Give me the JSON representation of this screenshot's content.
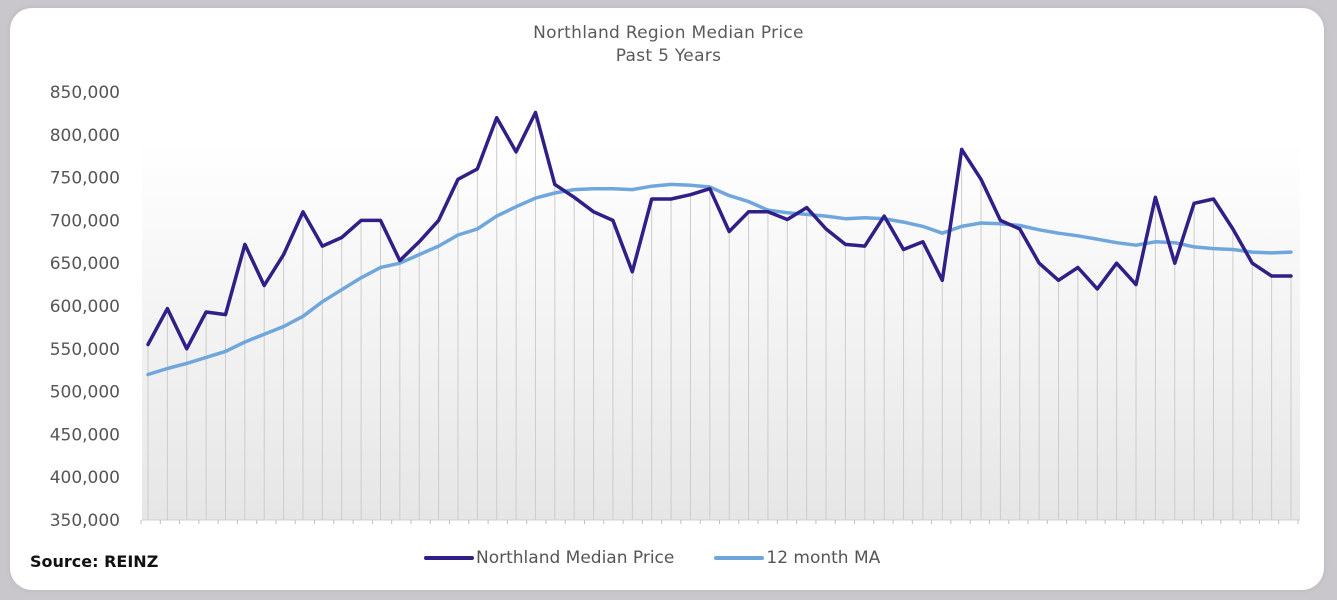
{
  "chart_data": {
    "type": "line",
    "title": "Northland Region Median Price",
    "subtitle": "Past 5 Years",
    "source": "Source: REINZ",
    "ylim": [
      350000,
      850000
    ],
    "yticks": [
      "350,000",
      "400,000",
      "450,000",
      "500,000",
      "550,000",
      "600,000",
      "650,000",
      "700,000",
      "750,000",
      "800,000",
      "850,000"
    ],
    "grid": "vertical bars with shaded background gradient",
    "legend_placement": "bottom-center",
    "series": [
      {
        "name": "Northland Median Price",
        "color": "#2f1f86",
        "values": [
          555000,
          597000,
          550000,
          593000,
          590000,
          672000,
          624000,
          660000,
          710000,
          670000,
          680000,
          700000,
          700000,
          653000,
          675000,
          700000,
          748000,
          760000,
          820000,
          780000,
          826000,
          742000,
          727000,
          710000,
          700000,
          640000,
          725000,
          725000,
          730000,
          737000,
          687000,
          710000,
          710000,
          701000,
          715000,
          690000,
          672000,
          670000,
          705000,
          666000,
          675000,
          630000,
          783000,
          748000,
          700000,
          690000,
          650000,
          630000,
          645000,
          620000,
          650000,
          625000,
          727000,
          650000,
          720000,
          725000,
          690000,
          650000,
          635000,
          635000
        ]
      },
      {
        "name": "12 month MA",
        "color": "#6fa6dc",
        "values": [
          520000,
          527000,
          533000,
          540000,
          547000,
          558000,
          567000,
          576000,
          588000,
          605000,
          619000,
          633000,
          645000,
          650000,
          660000,
          670000,
          683000,
          690000,
          705000,
          716000,
          726000,
          732000,
          736000,
          737000,
          737000,
          736000,
          740000,
          742000,
          741000,
          739000,
          729000,
          722000,
          712000,
          709000,
          707000,
          705000,
          702000,
          703000,
          702000,
          698000,
          693000,
          685000,
          693000,
          697000,
          696000,
          694000,
          689000,
          685000,
          682000,
          678000,
          674000,
          671000,
          675000,
          674000,
          669000,
          667000,
          666000,
          663000,
          662000,
          663000
        ]
      }
    ]
  }
}
